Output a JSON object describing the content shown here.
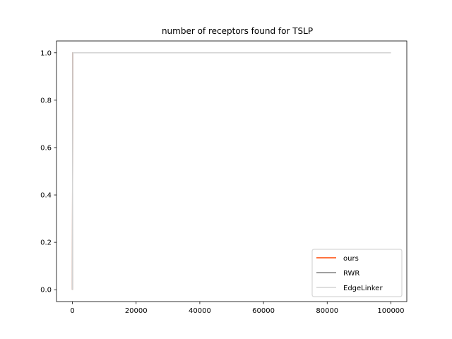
{
  "chart_data": {
    "type": "line",
    "title": "number of receptors found for TSLP",
    "xlabel": "",
    "ylabel": "",
    "xlim": [
      -5000,
      105000
    ],
    "ylim": [
      -0.05,
      1.05
    ],
    "xticks": [
      0,
      20000,
      40000,
      60000,
      80000,
      100000
    ],
    "yticks": [
      0.0,
      0.2,
      0.4,
      0.6,
      0.8,
      1.0
    ],
    "xtick_labels": [
      "0",
      "20000",
      "40000",
      "60000",
      "80000",
      "100000"
    ],
    "ytick_labels": [
      "0.0",
      "0.2",
      "0.4",
      "0.6",
      "0.8",
      "1.0"
    ],
    "grid": false,
    "legend_position": "lower-right",
    "series": [
      {
        "name": "ours",
        "color": "#ff4500",
        "x": [
          0,
          100,
          100000
        ],
        "y": [
          0,
          1,
          1
        ]
      },
      {
        "name": "RWR",
        "color": "#808080",
        "x": [
          0,
          100,
          100000
        ],
        "y": [
          0,
          1,
          1
        ]
      },
      {
        "name": "EdgeLinker",
        "color": "#d3d3d3",
        "x": [
          0,
          100,
          100000
        ],
        "y": [
          0,
          1,
          1
        ]
      }
    ]
  }
}
